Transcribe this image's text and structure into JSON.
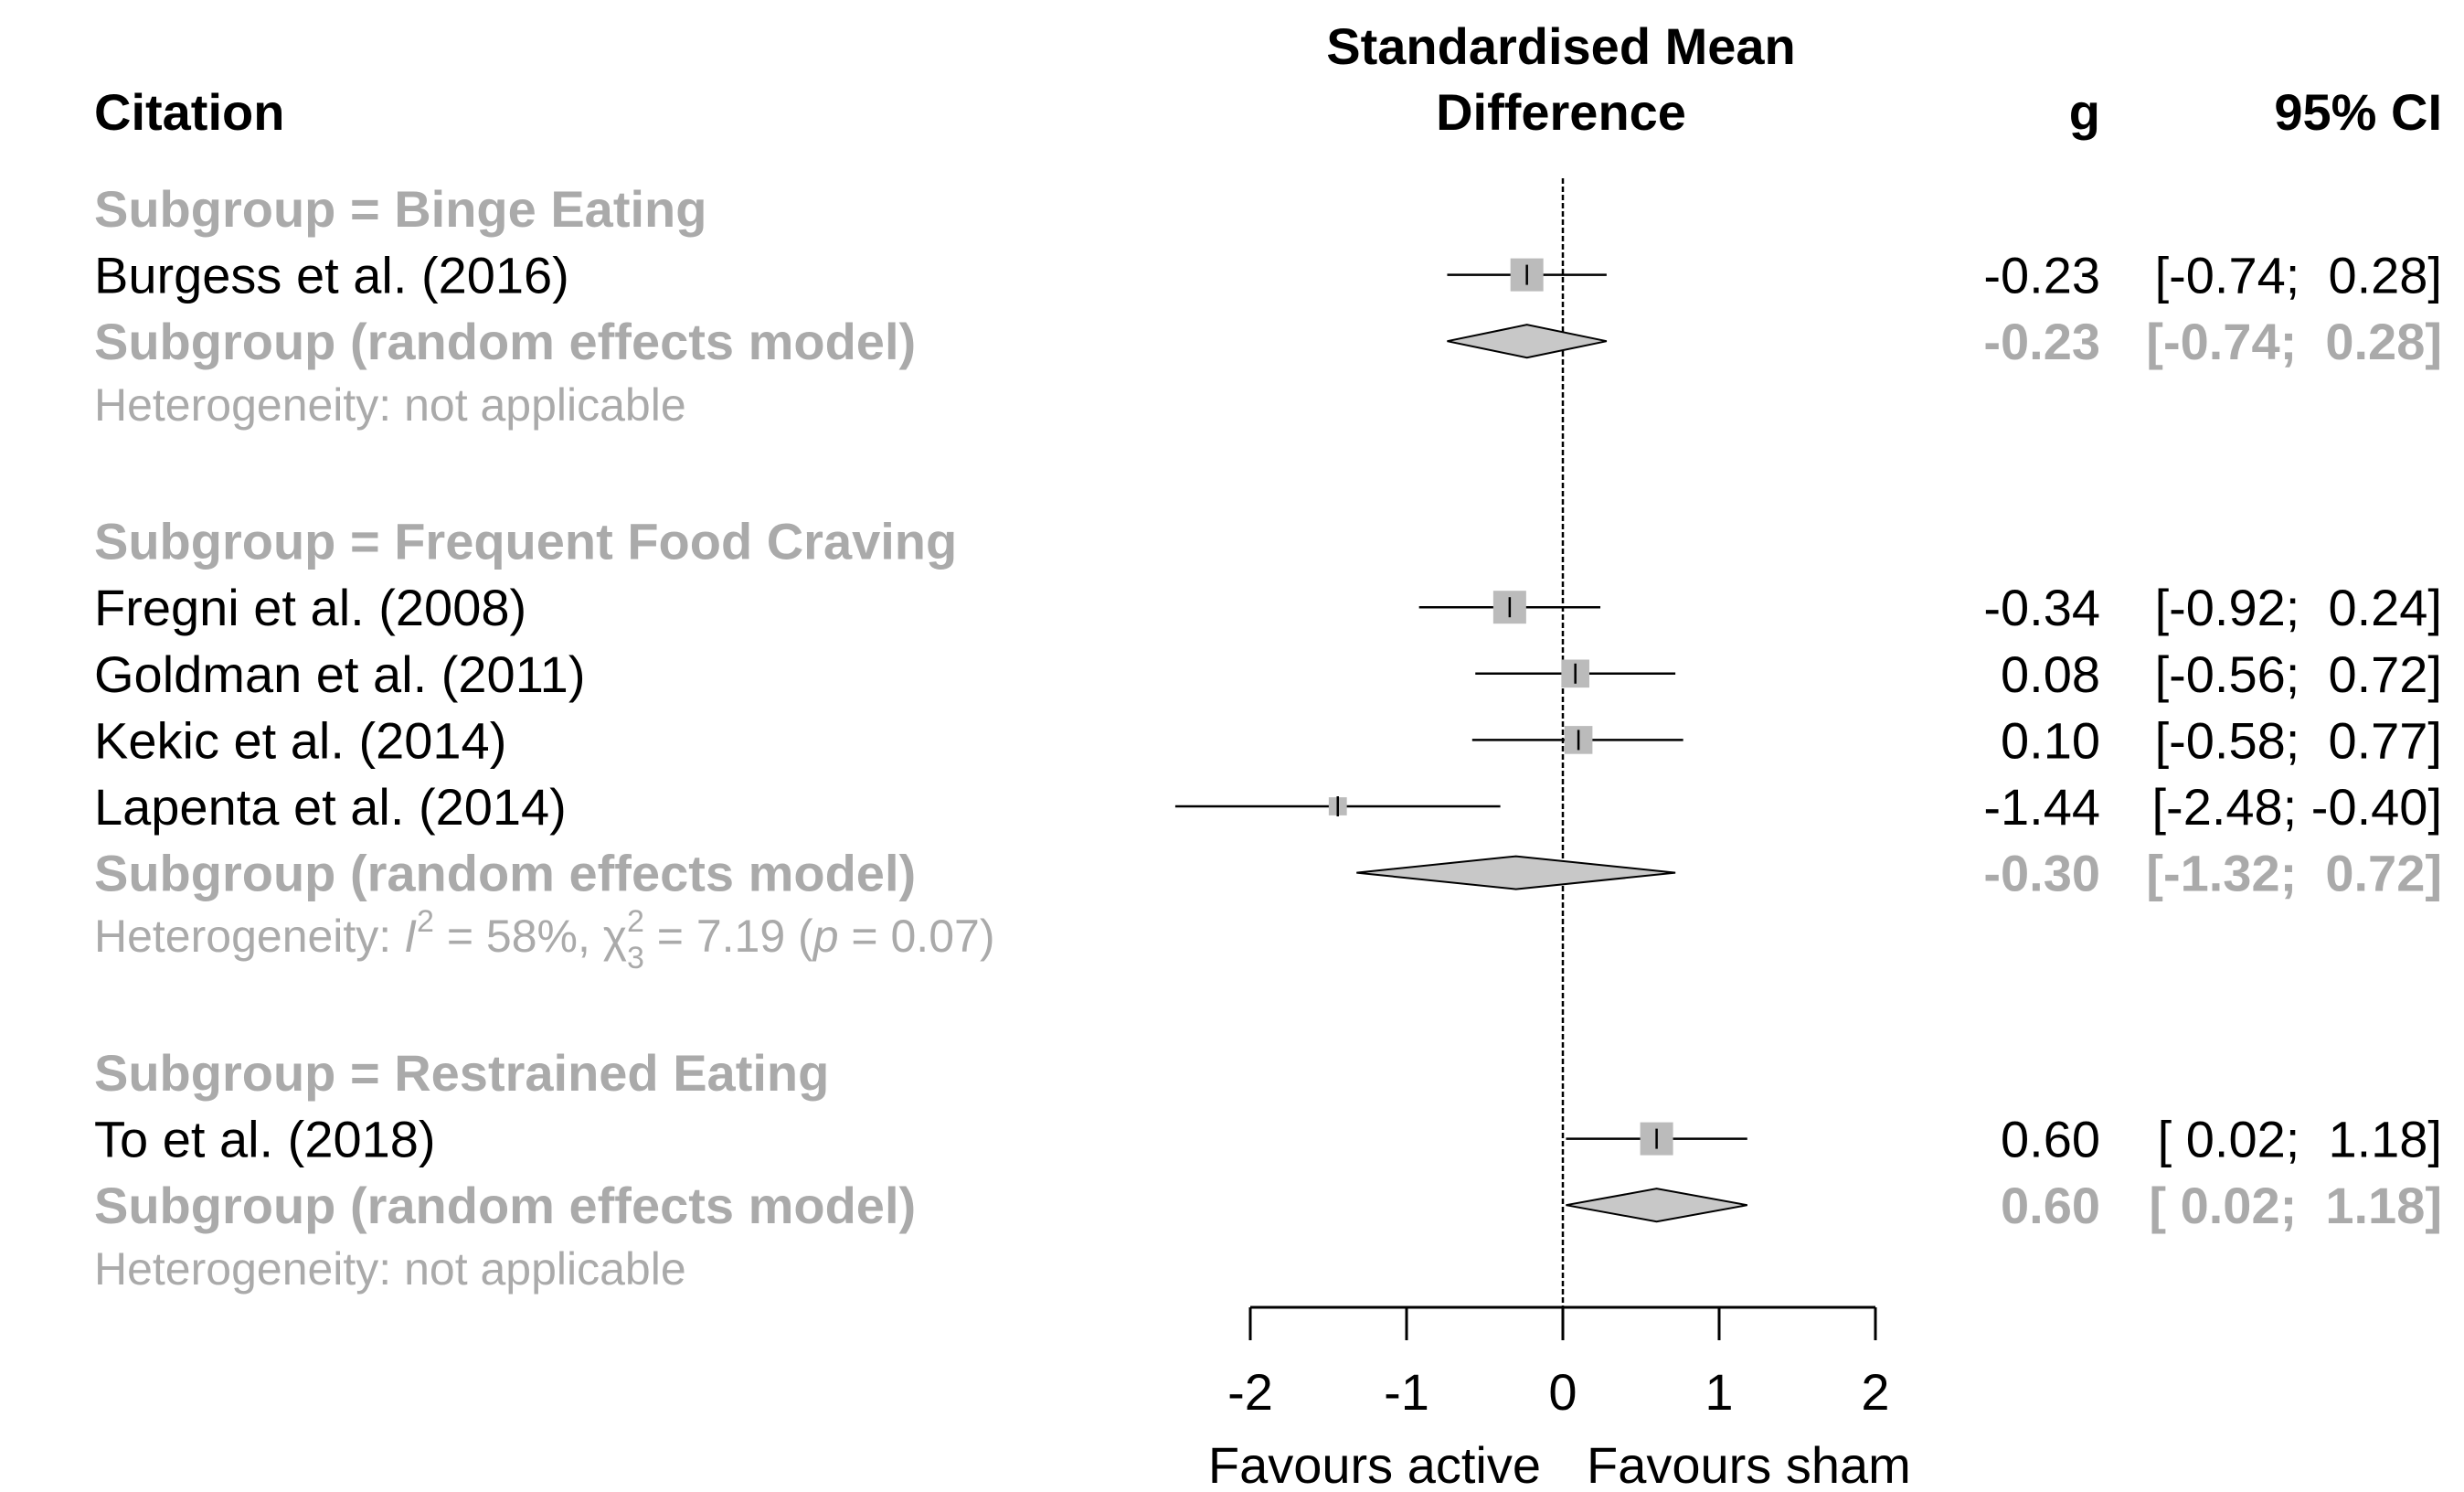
{
  "header": {
    "citation": "Citation",
    "smd_line1": "Standardised Mean",
    "smd_line2": "Difference",
    "g": "g",
    "ci": "95% CI"
  },
  "colors": {
    "subgroup_text": "#aaaaaa",
    "marker_fill": "#bbbbbb",
    "diamond_fill": "#c8c8c8",
    "line": "#000000"
  },
  "chart_data": {
    "type": "forest",
    "x_axis": {
      "ticks": [
        -2,
        -1,
        0,
        1,
        2
      ],
      "tick_labels": [
        "-2",
        "-1",
        "0",
        "1",
        "2"
      ],
      "xlim": [
        -2,
        2
      ],
      "label_left": "Favours active",
      "label_right": "Favours sham"
    },
    "subgroups": [
      {
        "title": "Subgroup = Binge Eating",
        "studies": [
          {
            "citation": "Burgess et al. (2016)",
            "g": -0.23,
            "lower": -0.74,
            "upper": 0.28,
            "g_text": "-0.23",
            "ci_text": "[-0.74;  0.28]",
            "weight": 1.0
          }
        ],
        "pooled": {
          "label": "Subgroup (random effects model)",
          "g": -0.23,
          "lower": -0.74,
          "upper": 0.28,
          "g_text": "-0.23",
          "ci_text": "[-0.74;  0.28]"
        },
        "heterogeneity": "Heterogeneity: not applicable"
      },
      {
        "title": "Subgroup = Frequent Food Craving",
        "studies": [
          {
            "citation": "Fregni et al. (2008)",
            "g": -0.34,
            "lower": -0.92,
            "upper": 0.24,
            "g_text": "-0.34",
            "ci_text": "[-0.92;  0.24]",
            "weight": 1.0
          },
          {
            "citation": "Goldman et al. (2011)",
            "g": 0.08,
            "lower": -0.56,
            "upper": 0.72,
            "g_text": "0.08",
            "ci_text": "[-0.56;  0.72]",
            "weight": 0.85
          },
          {
            "citation": "Kekic et al. (2014)",
            "g": 0.1,
            "lower": -0.58,
            "upper": 0.77,
            "g_text": "0.10",
            "ci_text": "[-0.58;  0.77]",
            "weight": 0.85
          },
          {
            "citation": "Lapenta et al. (2014)",
            "g": -1.44,
            "lower": -2.48,
            "upper": -0.4,
            "g_text": "-1.44",
            "ci_text": "[-2.48; -0.40]",
            "weight": 0.55
          }
        ],
        "pooled": {
          "label": "Subgroup (random effects model)",
          "g": -0.3,
          "lower": -1.32,
          "upper": 0.72,
          "g_text": "-0.30",
          "ci_text": "[-1.32;  0.72]"
        },
        "heterogeneity": {
          "prefix": "Heterogeneity: ",
          "i2_symbol": "I",
          "i2_sup": "2",
          "i2_value": " = 58%, ",
          "chi_symbol": "χ",
          "chi_sup": "2",
          "chi_sub": "3",
          "chi_value": " = 7.19 (",
          "p_symbol": "p",
          "p_value": " = 0.07)"
        }
      },
      {
        "title": "Subgroup = Restrained Eating",
        "studies": [
          {
            "citation": "To et al. (2018)",
            "g": 0.6,
            "lower": 0.02,
            "upper": 1.18,
            "g_text": "0.60",
            "ci_text": "[ 0.02;  1.18]",
            "weight": 1.0
          }
        ],
        "pooled": {
          "label": "Subgroup (random effects model)",
          "g": 0.6,
          "lower": 0.02,
          "upper": 1.18,
          "g_text": "0.60",
          "ci_text": "[ 0.02;  1.18]"
        },
        "heterogeneity": "Heterogeneity: not applicable"
      }
    ]
  }
}
